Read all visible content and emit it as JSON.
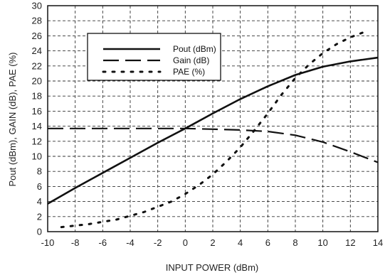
{
  "chart_data": {
    "type": "line",
    "xlabel": "INPUT POWER (dBm)",
    "ylabel": "Pout (dBm), GAIN (dB), PAE (%)",
    "xlim": [
      -10,
      14
    ],
    "ylim": [
      0,
      30
    ],
    "xticks": [
      -10,
      -8,
      -6,
      -4,
      -2,
      0,
      2,
      4,
      6,
      8,
      10,
      12,
      14
    ],
    "yticks": [
      0,
      2,
      4,
      6,
      8,
      10,
      12,
      14,
      16,
      18,
      20,
      22,
      24,
      26,
      28,
      30
    ],
    "grid": true,
    "legend_position": "top-left",
    "series": [
      {
        "name": "Pout (dBm)",
        "style": "solid",
        "x": [
          -10,
          -8,
          -6,
          -4,
          -2,
          0,
          2,
          4,
          6,
          8,
          10,
          12,
          14
        ],
        "y": [
          3.7,
          5.8,
          7.8,
          9.8,
          11.8,
          13.7,
          15.7,
          17.6,
          19.3,
          20.8,
          21.9,
          22.6,
          23.1
        ]
      },
      {
        "name": "Gain (dB)",
        "style": "long-dash",
        "x": [
          -10,
          -8,
          -6,
          -4,
          -2,
          0,
          2,
          4,
          6,
          8,
          10,
          12,
          14
        ],
        "y": [
          13.7,
          13.7,
          13.7,
          13.7,
          13.7,
          13.7,
          13.6,
          13.5,
          13.3,
          12.8,
          11.9,
          10.6,
          9.2
        ]
      },
      {
        "name": "PAE (%)",
        "style": "dotted",
        "x": [
          -9,
          -8,
          -7,
          -6,
          -5,
          -4,
          -3,
          -2,
          -1,
          0,
          1,
          2,
          3,
          4,
          5,
          6,
          7,
          8,
          9,
          10,
          11,
          12,
          13
        ],
        "y": [
          0.6,
          0.8,
          1.0,
          1.3,
          1.6,
          2.1,
          2.6,
          3.3,
          4.0,
          5.0,
          6.2,
          7.6,
          9.3,
          11.2,
          13.4,
          15.7,
          18.2,
          20.4,
          22.2,
          23.7,
          24.9,
          25.8,
          26.5
        ]
      }
    ]
  }
}
